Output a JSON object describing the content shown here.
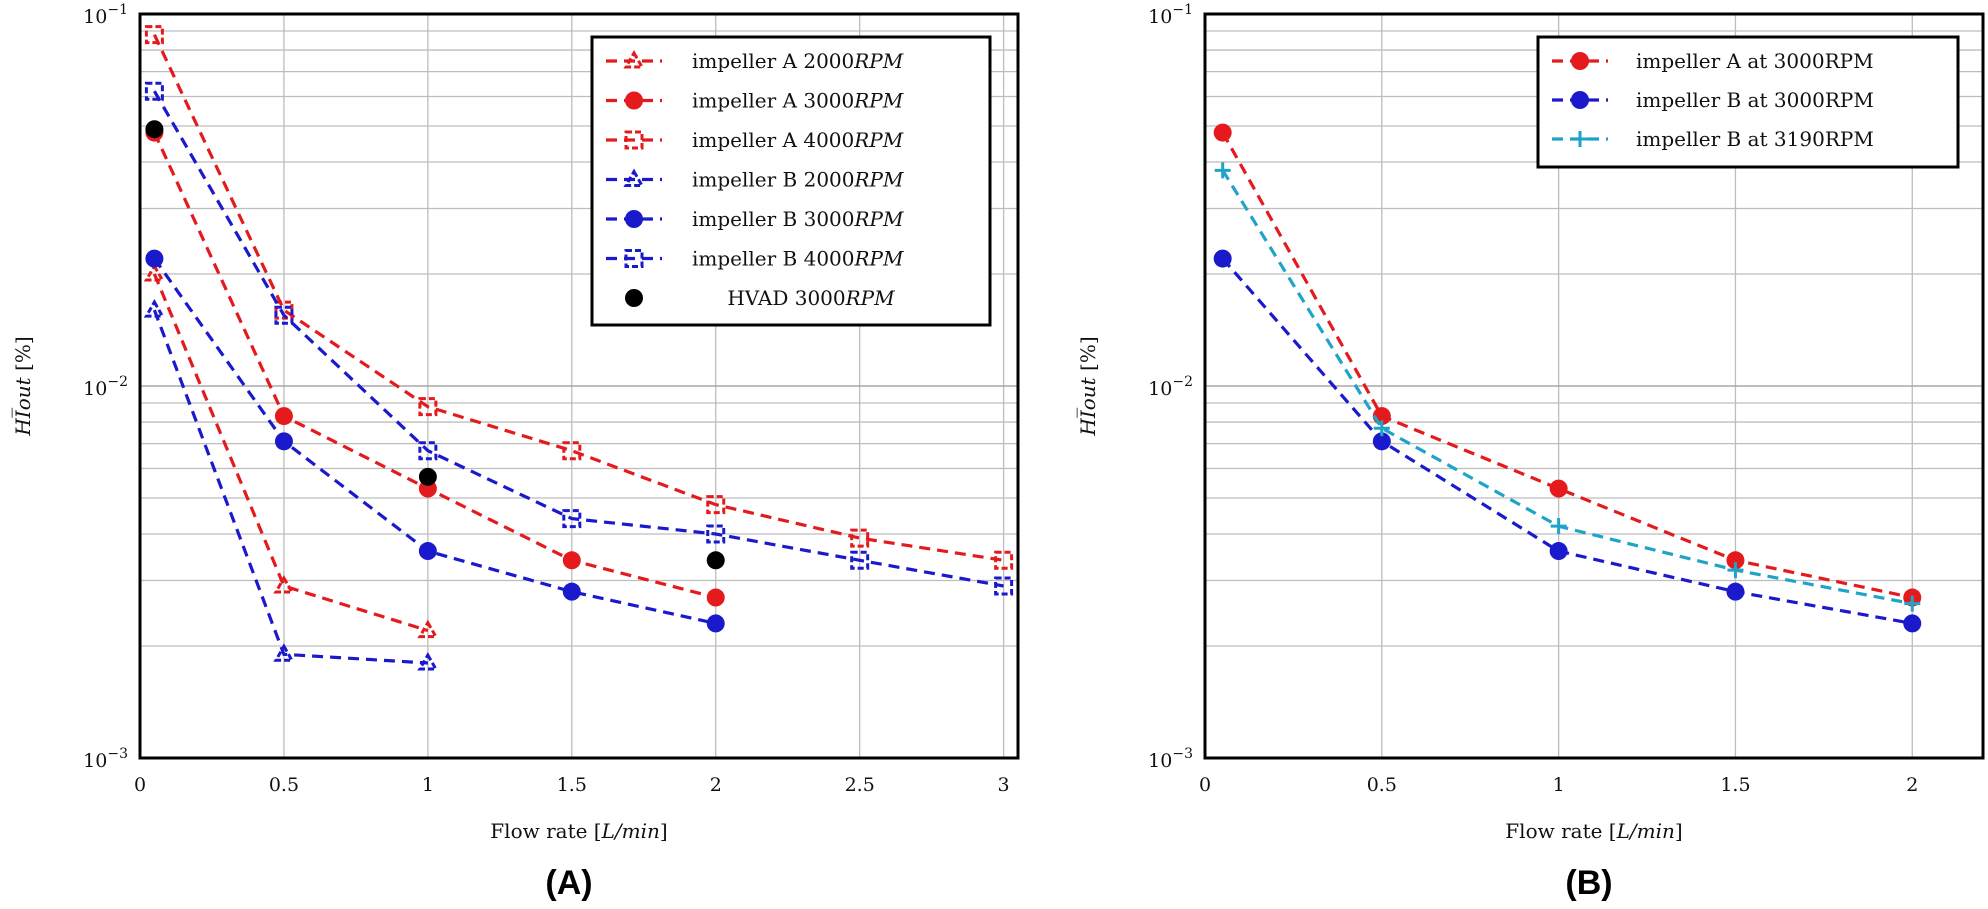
{
  "chart_data": [
    {
      "type": "line",
      "panel_label": "(A)",
      "xlabel_main": "Flow rate [",
      "xlabel_italic": "L/min",
      "xlabel_end": "]",
      "ylabel_italic": "HI̅out",
      "ylabel_end": " [%]",
      "xlim": [
        0,
        3.05
      ],
      "ylim": [
        0.001,
        0.1
      ],
      "yscale": "log",
      "grid": true,
      "legend_position": "top-right",
      "x_ticks": [
        "0",
        "0.5",
        "1",
        "1.5",
        "2",
        "2.5",
        "3"
      ],
      "x_tick_values": [
        0,
        0.5,
        1,
        1.5,
        2,
        2.5,
        3
      ],
      "y_ticks": [
        {
          "base": "10",
          "exp": "−3"
        },
        {
          "base": "10",
          "exp": "−2"
        },
        {
          "base": "10",
          "exp": "−1"
        }
      ],
      "series": [
        {
          "name": "impeller A 2000",
          "unit": "RPM",
          "color": "#e41a1c",
          "marker": "triangle",
          "dashed": true,
          "x": [
            0.05,
            0.5,
            1.0
          ],
          "y": [
            0.02,
            0.0029,
            0.0022
          ]
        },
        {
          "name": "impeller A 3000",
          "unit": "RPM",
          "color": "#e41a1c",
          "marker": "circle",
          "dashed": true,
          "x": [
            0.05,
            0.5,
            1.0,
            1.5,
            2.0
          ],
          "y": [
            0.048,
            0.0083,
            0.0053,
            0.0034,
            0.0027
          ]
        },
        {
          "name": "impeller A 4000",
          "unit": "RPM",
          "color": "#e41a1c",
          "marker": "square",
          "dashed": true,
          "x": [
            0.05,
            0.5,
            1.0,
            1.5,
            2.0,
            2.5,
            3.0
          ],
          "y": [
            0.088,
            0.016,
            0.0088,
            0.0067,
            0.0048,
            0.0039,
            0.0034
          ]
        },
        {
          "name": "impeller B 2000",
          "unit": "RPM",
          "color": "#1a1acc",
          "marker": "triangle",
          "dashed": true,
          "x": [
            0.05,
            0.5,
            1.0
          ],
          "y": [
            0.016,
            0.0019,
            0.0018
          ]
        },
        {
          "name": "impeller B 3000",
          "unit": "RPM",
          "color": "#1a1acc",
          "marker": "circle",
          "dashed": true,
          "x": [
            0.05,
            0.5,
            1.0,
            1.5,
            2.0
          ],
          "y": [
            0.022,
            0.0071,
            0.0036,
            0.0028,
            0.0023
          ]
        },
        {
          "name": "impeller B 4000",
          "unit": "RPM",
          "color": "#1a1acc",
          "marker": "square",
          "dashed": true,
          "x": [
            0.05,
            0.5,
            1.0,
            1.5,
            2.0,
            2.5,
            3.0
          ],
          "y": [
            0.062,
            0.0155,
            0.0067,
            0.0044,
            0.004,
            0.0034,
            0.0029
          ]
        },
        {
          "name": "HVAD 3000",
          "unit": "RPM",
          "color": "#000000",
          "marker": "circle",
          "dashed": false,
          "x": [
            0.05,
            1.0,
            2.0
          ],
          "y": [
            0.049,
            0.0057,
            0.0034
          ]
        }
      ]
    },
    {
      "type": "line",
      "panel_label": "(B)",
      "xlabel_main": "Flow rate [",
      "xlabel_italic": "L/min",
      "xlabel_end": "]",
      "ylabel_italic": "HI̅out",
      "ylabel_end": " [%]",
      "xlim": [
        0,
        2.2
      ],
      "ylim": [
        0.001,
        0.1
      ],
      "yscale": "log",
      "grid": true,
      "legend_position": "top-right",
      "x_ticks": [
        "0",
        "0.5",
        "1",
        "1.5",
        "2"
      ],
      "x_tick_values": [
        0,
        0.5,
        1,
        1.5,
        2
      ],
      "y_ticks": [
        {
          "base": "10",
          "exp": "−3"
        },
        {
          "base": "10",
          "exp": "−2"
        },
        {
          "base": "10",
          "exp": "−1"
        }
      ],
      "series": [
        {
          "name": "impeller A at 3000RPM",
          "color": "#e41a1c",
          "marker": "circle",
          "dashed": true,
          "x": [
            0.05,
            0.5,
            1.0,
            1.5,
            2.0
          ],
          "y": [
            0.048,
            0.0083,
            0.0053,
            0.0034,
            0.0027
          ]
        },
        {
          "name": "impeller B at 3000RPM",
          "color": "#1a1acc",
          "marker": "circle",
          "dashed": true,
          "x": [
            0.05,
            0.5,
            1.0,
            1.5,
            2.0
          ],
          "y": [
            0.022,
            0.0071,
            0.0036,
            0.0028,
            0.0023
          ]
        },
        {
          "name": "impeller B at 3190RPM",
          "color": "#1fa3c8",
          "marker": "plus",
          "dashed": true,
          "x": [
            0.05,
            0.5,
            1.0,
            1.5,
            2.0
          ],
          "y": [
            0.038,
            0.0077,
            0.0042,
            0.0032,
            0.0026
          ]
        }
      ]
    }
  ]
}
